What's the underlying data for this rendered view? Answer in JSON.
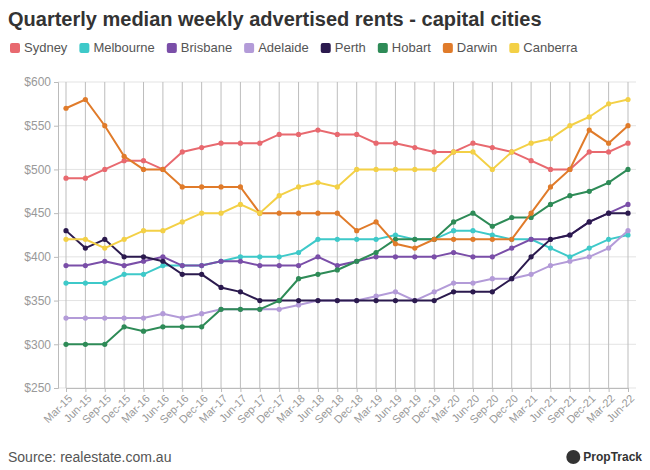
{
  "chart_data": {
    "type": "line",
    "title": "Quarterly median weekly advertised rents - capital cities",
    "source": "Source: realestate.com.au",
    "brand": "PropTrack",
    "categories": [
      "Mar-15",
      "Jun-15",
      "Sep-15",
      "Dec-15",
      "Mar-16",
      "Jun-16",
      "Sep-16",
      "Dec-16",
      "Mar-17",
      "Jun-17",
      "Sep-17",
      "Dec-17",
      "Mar-18",
      "Jun-18",
      "Sep-18",
      "Dec-18",
      "Mar-19",
      "Jun-19",
      "Sep-19",
      "Dec-19",
      "Mar-20",
      "Jun-20",
      "Sep-20",
      "Dec-20",
      "Mar-21",
      "Jun-21",
      "Sep-21",
      "Dec-21",
      "Mar-22",
      "Jun-22"
    ],
    "ylim": [
      250,
      600
    ],
    "yticks": [
      {
        "value": 250,
        "label": "$250"
      },
      {
        "value": 300,
        "label": "$300"
      },
      {
        "value": 350,
        "label": "$350"
      },
      {
        "value": 400,
        "label": "$400"
      },
      {
        "value": 450,
        "label": "$450"
      },
      {
        "value": 500,
        "label": "$500"
      },
      {
        "value": 550,
        "label": "$550"
      },
      {
        "value": 600,
        "label": "$600"
      }
    ],
    "grid": true,
    "legend": "top",
    "marker": "circle",
    "series": [
      {
        "name": "Sydney",
        "color": "#e8696f",
        "values": [
          490,
          490,
          500,
          510,
          510,
          500,
          520,
          525,
          530,
          530,
          530,
          540,
          540,
          545,
          540,
          540,
          530,
          530,
          525,
          520,
          520,
          530,
          525,
          520,
          510,
          500,
          500,
          520,
          520,
          530
        ]
      },
      {
        "name": "Melbourne",
        "color": "#3ec9c9",
        "values": [
          370,
          370,
          370,
          380,
          380,
          390,
          390,
          390,
          395,
          400,
          400,
          400,
          405,
          420,
          420,
          420,
          420,
          425,
          420,
          420,
          430,
          430,
          425,
          420,
          420,
          410,
          400,
          410,
          420,
          425
        ]
      },
      {
        "name": "Brisbane",
        "color": "#7a4ea8",
        "values": [
          390,
          390,
          395,
          390,
          395,
          400,
          390,
          390,
          395,
          395,
          390,
          390,
          390,
          400,
          390,
          395,
          400,
          400,
          400,
          400,
          405,
          400,
          400,
          410,
          420,
          420,
          425,
          440,
          450,
          460
        ]
      },
      {
        "name": "Adelaide",
        "color": "#b39bd8",
        "values": [
          330,
          330,
          330,
          330,
          330,
          335,
          330,
          335,
          340,
          340,
          340,
          340,
          345,
          350,
          350,
          350,
          355,
          360,
          350,
          360,
          370,
          370,
          375,
          375,
          380,
          390,
          395,
          400,
          410,
          430
        ]
      },
      {
        "name": "Perth",
        "color": "#2b1a4e",
        "values": [
          430,
          410,
          420,
          400,
          400,
          395,
          380,
          380,
          365,
          360,
          350,
          350,
          350,
          350,
          350,
          350,
          350,
          350,
          350,
          350,
          360,
          360,
          360,
          375,
          400,
          420,
          425,
          440,
          450,
          450
        ]
      },
      {
        "name": "Hobart",
        "color": "#2e8b57",
        "values": [
          300,
          300,
          300,
          320,
          315,
          320,
          320,
          320,
          340,
          340,
          340,
          350,
          375,
          380,
          385,
          395,
          405,
          420,
          420,
          420,
          440,
          450,
          435,
          445,
          445,
          460,
          470,
          475,
          485,
          500
        ]
      },
      {
        "name": "Darwin",
        "color": "#e07b2a",
        "values": [
          570,
          580,
          550,
          515,
          500,
          500,
          480,
          480,
          480,
          480,
          450,
          450,
          450,
          450,
          450,
          430,
          440,
          415,
          410,
          420,
          420,
          420,
          420,
          420,
          450,
          480,
          500,
          545,
          530,
          550
        ]
      },
      {
        "name": "Canberra",
        "color": "#f3d046",
        "values": [
          420,
          420,
          410,
          420,
          430,
          430,
          440,
          450,
          450,
          460,
          450,
          470,
          480,
          485,
          480,
          500,
          500,
          500,
          500,
          500,
          520,
          520,
          500,
          520,
          530,
          535,
          550,
          560,
          575,
          580
        ]
      }
    ]
  }
}
